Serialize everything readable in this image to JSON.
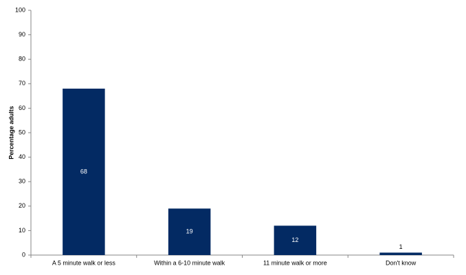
{
  "chart_data": {
    "type": "bar",
    "y_label": "Percentage adults",
    "categories": [
      "A 5 minute walk or less",
      "Within a 6-10 minute walk",
      "11 minute walk or more",
      "Don't know"
    ],
    "values": [
      68,
      19,
      12,
      1
    ],
    "color": "#032a63",
    "ylim": [
      0,
      100
    ],
    "yticks": [
      0,
      10,
      20,
      30,
      40,
      50,
      60,
      70,
      80,
      90,
      100
    ],
    "grid": false
  }
}
